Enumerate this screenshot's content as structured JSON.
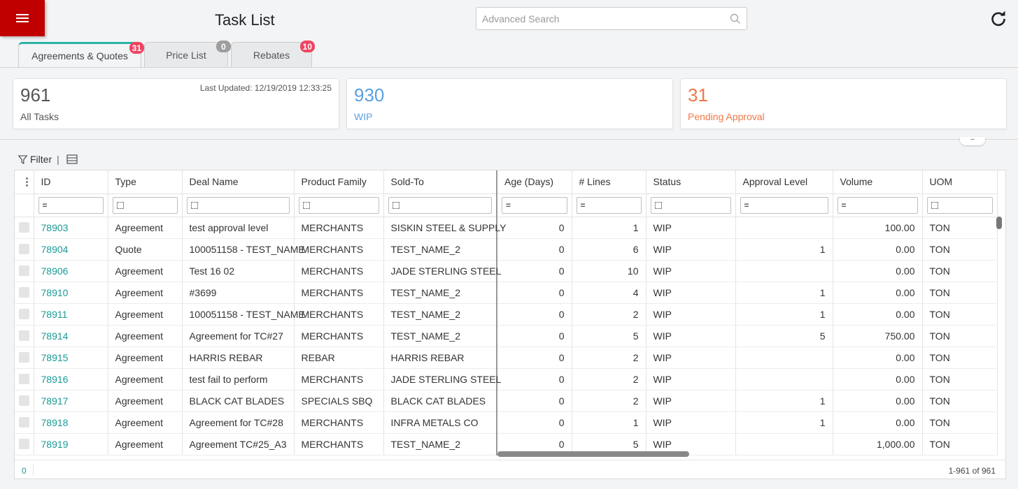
{
  "header": {
    "title": "Task List",
    "search_placeholder": "Advanced Search"
  },
  "tabs": [
    {
      "label": "Agreements & Quotes",
      "badge": "31",
      "badge_color": "#ef4562",
      "active": true
    },
    {
      "label": "Price List",
      "badge": "0",
      "badge_color": "#9e9e9e",
      "active": false
    },
    {
      "label": "Rebates",
      "badge": "10",
      "badge_color": "#ef4562",
      "active": false
    }
  ],
  "cards": [
    {
      "count": "961",
      "label": "All Tasks",
      "color": "#555555",
      "updated": "Last Updated: 12/19/2019 12:33:25"
    },
    {
      "count": "930",
      "label": "WIP",
      "color": "#5aa0e0",
      "updated": ""
    },
    {
      "count": "31",
      "label": "Pending Approval",
      "color": "#f07848",
      "updated": ""
    }
  ],
  "toolbar": {
    "filter_label": "Filter",
    "separator": "|"
  },
  "table": {
    "columns": [
      "ID",
      "Type",
      "Deal Name",
      "Product Family",
      "Sold-To",
      "Age (Days)",
      "# Lines",
      "Status",
      "Approval Level",
      "Volume",
      "UOM"
    ],
    "filters": [
      "=",
      "",
      "",
      "",
      "",
      "=",
      "=",
      "",
      "=",
      "=",
      ""
    ],
    "rows": [
      [
        "78903",
        "Agreement",
        "test approval level",
        "MERCHANTS",
        "SISKIN STEEL & SUPPLY",
        "0",
        "1",
        "WIP",
        "",
        "100.00",
        "TON"
      ],
      [
        "78904",
        "Quote",
        "100051158 - TEST_NAME",
        "MERCHANTS",
        "TEST_NAME_2",
        "0",
        "6",
        "WIP",
        "1",
        "0.00",
        "TON"
      ],
      [
        "78906",
        "Agreement",
        "Test 16 02",
        "MERCHANTS",
        "JADE STERLING STEEL",
        "0",
        "10",
        "WIP",
        "",
        "0.00",
        "TON"
      ],
      [
        "78910",
        "Agreement",
        "#3699",
        "MERCHANTS",
        "TEST_NAME_2",
        "0",
        "4",
        "WIP",
        "1",
        "0.00",
        "TON"
      ],
      [
        "78911",
        "Agreement",
        "100051158 - TEST_NAME",
        "MERCHANTS",
        "TEST_NAME_2",
        "0",
        "2",
        "WIP",
        "1",
        "0.00",
        "TON"
      ],
      [
        "78914",
        "Agreement",
        "Agreement for TC#27",
        "MERCHANTS",
        "TEST_NAME_2",
        "0",
        "5",
        "WIP",
        "5",
        "750.00",
        "TON"
      ],
      [
        "78915",
        "Agreement",
        "HARRIS REBAR",
        "REBAR",
        "HARRIS REBAR",
        "0",
        "2",
        "WIP",
        "",
        "0.00",
        "TON"
      ],
      [
        "78916",
        "Agreement",
        "test fail to perform",
        "MERCHANTS",
        "JADE STERLING STEEL",
        "0",
        "2",
        "WIP",
        "",
        "0.00",
        "TON"
      ],
      [
        "78917",
        "Agreement",
        "BLACK CAT BLADES",
        "SPECIALS SBQ",
        "BLACK CAT BLADES",
        "0",
        "2",
        "WIP",
        "1",
        "0.00",
        "TON"
      ],
      [
        "78918",
        "Agreement",
        "Agreement for TC#28",
        "MERCHANTS",
        "INFRA METALS CO",
        "0",
        "1",
        "WIP",
        "1",
        "0.00",
        "TON"
      ],
      [
        "78919",
        "Agreement",
        "Agreement TC#25_A3",
        "MERCHANTS",
        "TEST_NAME_2",
        "0",
        "5",
        "WIP",
        "",
        "1,000.00",
        "TON"
      ]
    ]
  },
  "footer": {
    "selected": "0",
    "range": "1-961 of 961"
  }
}
